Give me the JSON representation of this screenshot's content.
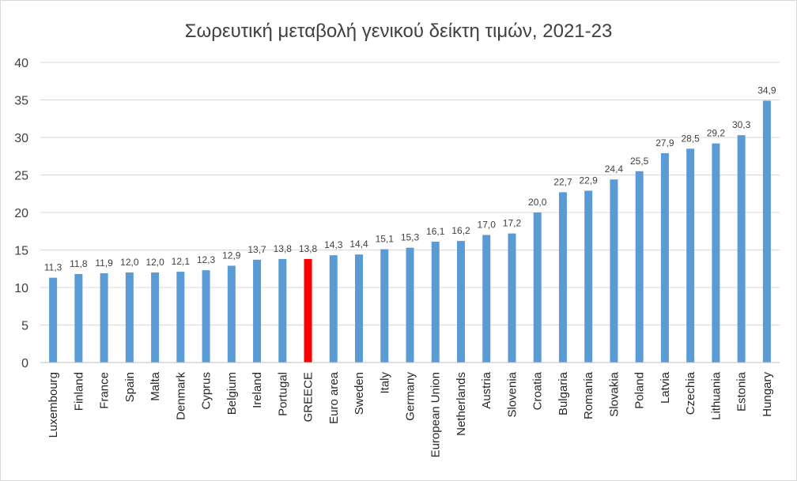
{
  "chart_data": {
    "type": "bar",
    "title": "Σωρευτική μεταβολή γενικού δείκτη τιμών, 2021-23",
    "categories": [
      "Luxembourg",
      "Finland",
      "France",
      "Spain",
      "Malta",
      "Denmark",
      "Cyprus",
      "Belgium",
      "Ireland",
      "Portugal",
      "GREECE",
      "Euro area",
      "Sweden",
      "Italy",
      "Germany",
      "European Union",
      "Netherlands",
      "Austria",
      "Slovenia",
      "Croatia",
      "Bulgaria",
      "Romania",
      "Slovakia",
      "Poland",
      "Latvia",
      "Czechia",
      "Lithuania",
      "Estonia",
      "Hungary"
    ],
    "values": [
      11.3,
      11.8,
      11.9,
      12.0,
      12.0,
      12.1,
      12.3,
      12.9,
      13.7,
      13.8,
      13.8,
      14.3,
      14.4,
      15.1,
      15.3,
      16.1,
      16.2,
      17.0,
      17.2,
      20.0,
      22.7,
      22.9,
      24.4,
      25.5,
      27.9,
      28.5,
      29.2,
      30.3,
      34.9
    ],
    "value_labels": [
      "11,3",
      "11,8",
      "11,9",
      "12,0",
      "12,0",
      "12,1",
      "12,3",
      "12,9",
      "13,7",
      "13,8",
      "13,8",
      "14,3",
      "14,4",
      "15,1",
      "15,3",
      "16,1",
      "16,2",
      "17,0",
      "17,2",
      "20,0",
      "22,7",
      "22,9",
      "24,4",
      "25,5",
      "27,9",
      "28,5",
      "29,2",
      "30,3",
      "34,9"
    ],
    "ylim": [
      0,
      40
    ],
    "yticks": [
      "0",
      "5",
      "10",
      "15",
      "20",
      "25",
      "30",
      "35",
      "40"
    ],
    "grid": true,
    "legend": "none",
    "colors": {
      "bar": "#5b9bd5",
      "highlight": "#ff0000"
    },
    "highlight_category": "GREECE"
  }
}
